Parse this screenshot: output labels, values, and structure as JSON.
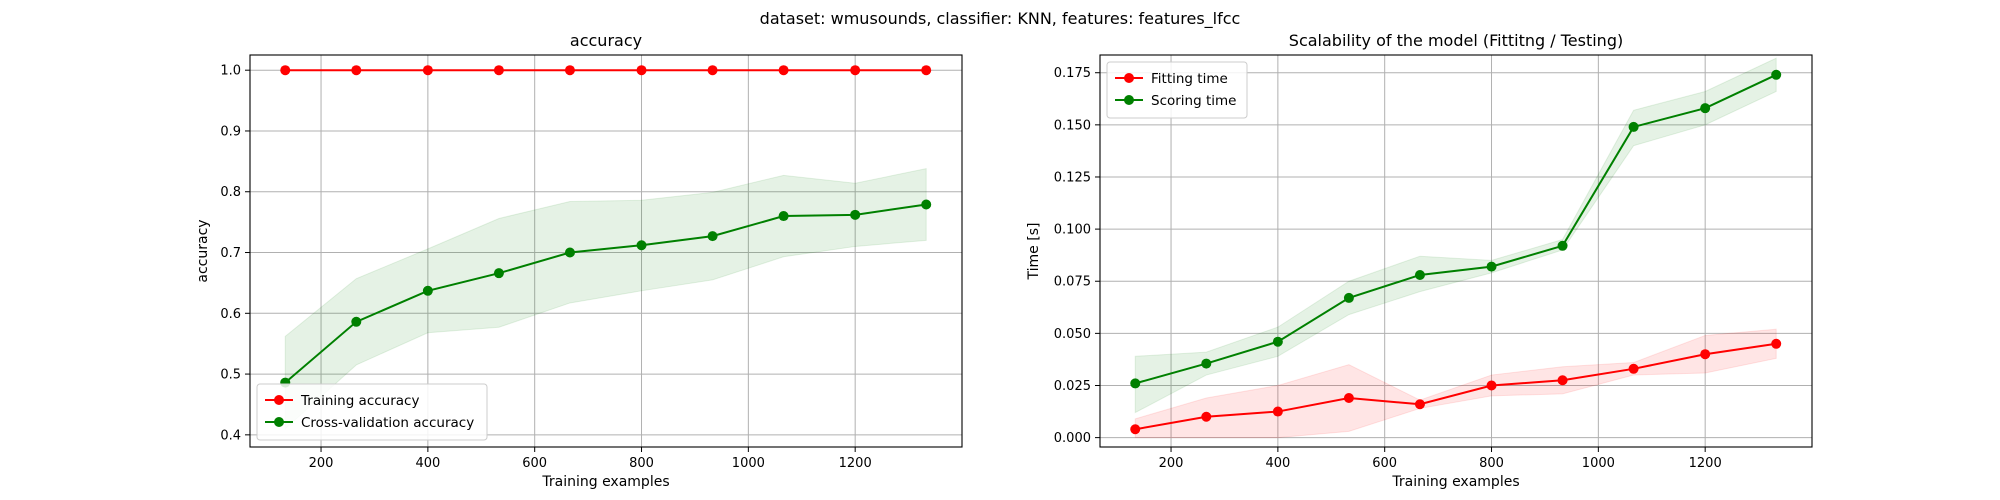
{
  "suptitle": "dataset: wmusounds, classifier: KNN, features: features_lfcc",
  "chart_data": [
    {
      "type": "line",
      "title": "accuracy",
      "xlabel": "Training examples",
      "ylabel": "accuracy",
      "xlim": [
        67,
        1400
      ],
      "ylim": [
        0.38,
        1.025
      ],
      "xticks": [
        200,
        400,
        600,
        800,
        1000,
        1200
      ],
      "xtick_labels": [
        "200",
        "400",
        "600",
        "800",
        "1000",
        "1200"
      ],
      "yticks": [
        0.4,
        0.5,
        0.6,
        0.7,
        0.8,
        0.9,
        1.0
      ],
      "ytick_labels": [
        "0.4",
        "0.5",
        "0.6",
        "0.7",
        "0.8",
        "0.9",
        "1.0"
      ],
      "grid": true,
      "legend_position": "lower-left",
      "x": [
        133,
        266,
        400,
        533,
        666,
        800,
        933,
        1066,
        1200,
        1333
      ],
      "series": [
        {
          "name": "Training accuracy",
          "color": "#ff0000",
          "values": [
            1.0,
            1.0,
            1.0,
            1.0,
            1.0,
            1.0,
            1.0,
            1.0,
            1.0,
            1.0
          ],
          "band_low": [
            1.0,
            1.0,
            1.0,
            1.0,
            1.0,
            1.0,
            1.0,
            1.0,
            1.0,
            1.0
          ],
          "band_high": [
            1.0,
            1.0,
            1.0,
            1.0,
            1.0,
            1.0,
            1.0,
            1.0,
            1.0,
            1.0
          ]
        },
        {
          "name": "Cross-validation accuracy",
          "color": "#008000",
          "values": [
            0.486,
            0.586,
            0.637,
            0.666,
            0.7,
            0.712,
            0.727,
            0.76,
            0.762,
            0.779
          ],
          "band_low": [
            0.41,
            0.515,
            0.568,
            0.577,
            0.617,
            0.637,
            0.655,
            0.693,
            0.71,
            0.72
          ],
          "band_high": [
            0.562,
            0.657,
            0.706,
            0.756,
            0.784,
            0.786,
            0.799,
            0.827,
            0.814,
            0.838
          ]
        }
      ]
    },
    {
      "type": "line",
      "title": "Scalability of the model (Fittitng / Testing)",
      "xlabel": "Training examples",
      "ylabel": "Time [s]",
      "xlim": [
        67,
        1400
      ],
      "ylim": [
        -0.0045,
        0.1835
      ],
      "xticks": [
        200,
        400,
        600,
        800,
        1000,
        1200
      ],
      "xtick_labels": [
        "200",
        "400",
        "600",
        "800",
        "1000",
        "1200"
      ],
      "yticks": [
        0.0,
        0.025,
        0.05,
        0.075,
        0.1,
        0.125,
        0.15,
        0.175
      ],
      "ytick_labels": [
        "0.000",
        "0.025",
        "0.050",
        "0.075",
        "0.100",
        "0.125",
        "0.150",
        "0.175"
      ],
      "grid": true,
      "legend_position": "upper-left",
      "x": [
        133,
        266,
        400,
        533,
        666,
        800,
        933,
        1066,
        1200,
        1333
      ],
      "series": [
        {
          "name": "Fitting time",
          "color": "#ff0000",
          "values": [
            0.004,
            0.01,
            0.0125,
            0.019,
            0.016,
            0.025,
            0.0275,
            0.033,
            0.04,
            0.045
          ],
          "band_low": [
            0.0,
            0.0,
            0.0,
            0.003,
            0.014,
            0.02,
            0.021,
            0.03,
            0.031,
            0.038
          ],
          "band_high": [
            0.009,
            0.019,
            0.025,
            0.035,
            0.018,
            0.03,
            0.034,
            0.036,
            0.049,
            0.052
          ]
        },
        {
          "name": "Scoring time",
          "color": "#008000",
          "values": [
            0.026,
            0.0355,
            0.046,
            0.067,
            0.078,
            0.082,
            0.092,
            0.149,
            0.158,
            0.174
          ],
          "band_low": [
            0.012,
            0.03,
            0.039,
            0.059,
            0.07,
            0.079,
            0.09,
            0.14,
            0.15,
            0.166
          ],
          "band_high": [
            0.039,
            0.041,
            0.053,
            0.075,
            0.087,
            0.085,
            0.095,
            0.157,
            0.166,
            0.182
          ]
        }
      ]
    }
  ]
}
